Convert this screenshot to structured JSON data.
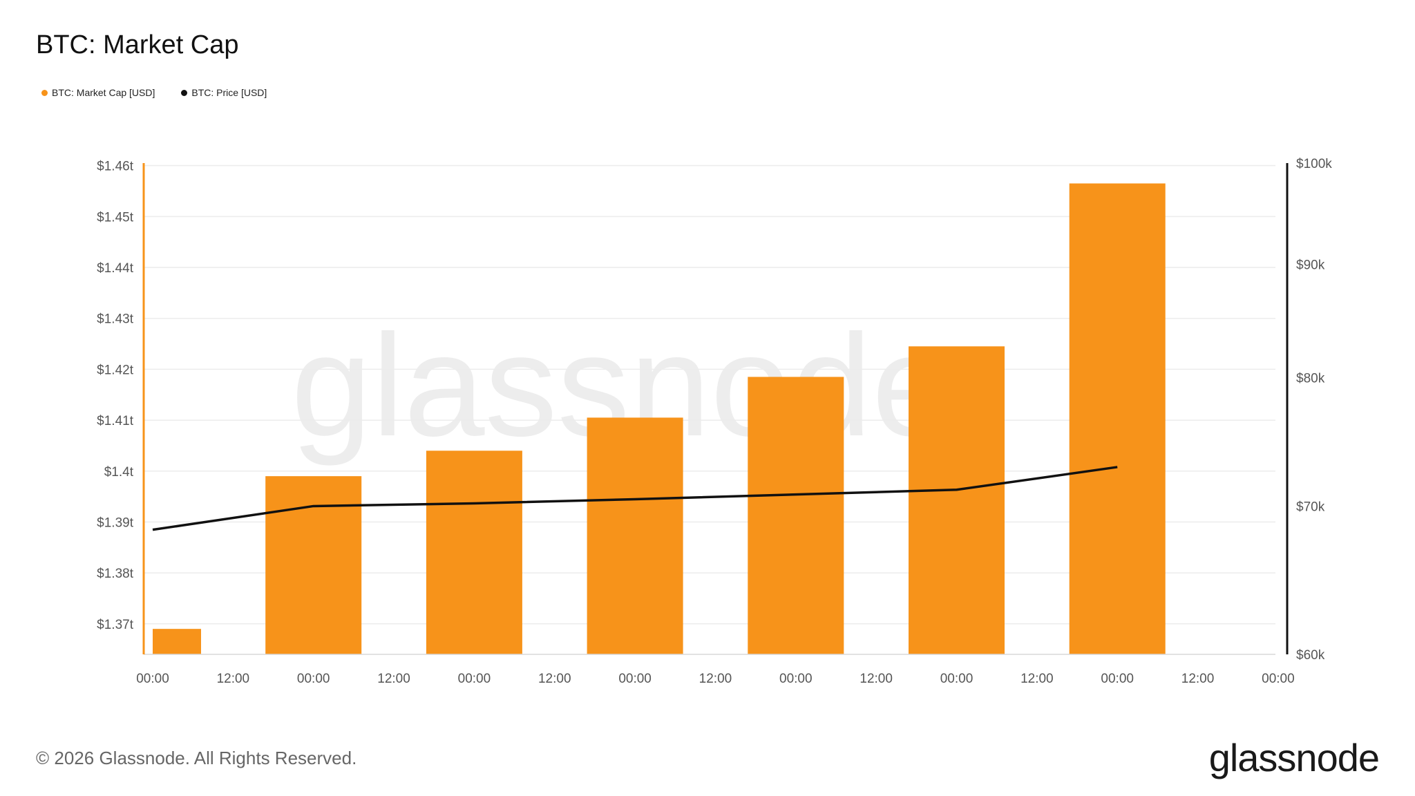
{
  "title": "BTC: Market Cap",
  "legend": [
    {
      "label": "BTC: Market Cap [USD]",
      "color": "#f7931a"
    },
    {
      "label": "BTC: Price [USD]",
      "color": "#111111"
    }
  ],
  "watermark": "glassnode",
  "footer": "© 2026 Glassnode. All Rights Reserved.",
  "brand": "glassnode",
  "chart_data": {
    "type": "bar",
    "title": "BTC: Market Cap",
    "x_tick_labels": [
      "00:00",
      "12:00",
      "00:00",
      "12:00",
      "00:00",
      "12:00",
      "00:00",
      "12:00",
      "00:00",
      "12:00",
      "00:00",
      "12:00",
      "00:00",
      "12:00",
      "00:00"
    ],
    "y_left": {
      "ticks": [
        "$1.37t",
        "$1.38t",
        "$1.39t",
        "$1.4t",
        "$1.41t",
        "$1.42t",
        "$1.43t",
        "$1.44t",
        "$1.45t",
        "$1.46t"
      ],
      "range_t": [
        1.364,
        1.4605
      ]
    },
    "y_right": {
      "ticks": [
        "$60k",
        "$70k",
        "$80k",
        "$90k",
        "$100k"
      ],
      "scale": "log",
      "range_k": [
        60,
        100
      ]
    },
    "series": [
      {
        "name": "BTC: Market Cap [USD]",
        "type": "bar",
        "axis": "left",
        "color": "#f7931a",
        "unit": "trillion USD",
        "points": [
          {
            "tick_index": 0,
            "value": 1.369,
            "partial": true
          },
          {
            "tick_index": 2,
            "value": 1.399
          },
          {
            "tick_index": 4,
            "value": 1.404
          },
          {
            "tick_index": 6,
            "value": 1.4105
          },
          {
            "tick_index": 8,
            "value": 1.4185
          },
          {
            "tick_index": 10,
            "value": 1.4245
          },
          {
            "tick_index": 12,
            "value": 1.4565
          }
        ]
      },
      {
        "name": "BTC: Price [USD]",
        "type": "line",
        "axis": "right",
        "color": "#111111",
        "unit": "thousand USD",
        "points": [
          {
            "tick_index": 0,
            "value": 68.3
          },
          {
            "tick_index": 2,
            "value": 70.0
          },
          {
            "tick_index": 4,
            "value": 70.2
          },
          {
            "tick_index": 6,
            "value": 70.5
          },
          {
            "tick_index": 8,
            "value": 70.85
          },
          {
            "tick_index": 10,
            "value": 71.2
          },
          {
            "tick_index": 12,
            "value": 72.9
          }
        ]
      }
    ],
    "grid": true,
    "legend_position": "top-left"
  }
}
